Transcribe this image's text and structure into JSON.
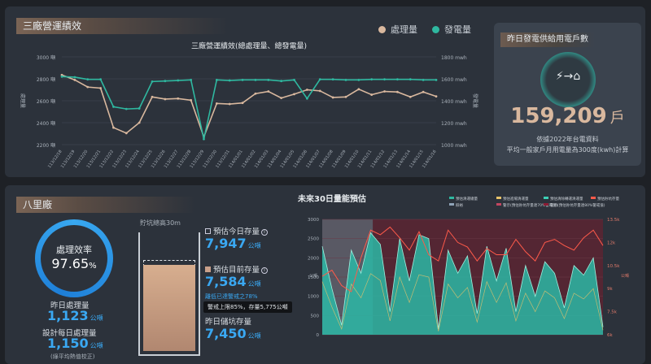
{
  "top_panel": {
    "title": "三廠營運績效",
    "legend": [
      {
        "label": "處理量",
        "color": "#d9b89e"
      },
      {
        "label": "發電量",
        "color": "#2fb8a0"
      }
    ]
  },
  "chart_data": [
    {
      "type": "line",
      "title": "三廠營運績效(總處理量、總發電量)",
      "ylabel": "處理量",
      "y2label": "發電量",
      "ylim": [
        2200,
        3000
      ],
      "y2lim": [
        1000,
        1800
      ],
      "y_ticks": [
        "3000 噸",
        "2800 噸",
        "2600 噸",
        "2400 噸",
        "2200 噸"
      ],
      "y2_ticks": [
        "1800 mwh",
        "1600 mwh",
        "1400 mwh",
        "1200 mwh",
        "1000 mwh"
      ],
      "categories": [
        "113/12/18",
        "113/12/19",
        "113/12/20",
        "113/12/21",
        "113/12/22",
        "113/12/23",
        "113/12/24",
        "113/12/25",
        "113/12/26",
        "113/12/27",
        "113/12/28",
        "113/12/29",
        "113/12/30",
        "113/12/31",
        "114/01/01",
        "114/01/02",
        "114/01/03",
        "114/01/04",
        "114/01/05",
        "114/01/06",
        "114/01/07",
        "114/01/08",
        "114/01/09",
        "114/01/10",
        "114/01/11",
        "114/01/12",
        "114/01/13",
        "114/01/14",
        "114/01/15",
        "114/01/16"
      ],
      "series": [
        {
          "name": "處理量",
          "axis": "left",
          "color": "#d9b89e",
          "values": [
            2835,
            2790,
            2725,
            2715,
            2355,
            2305,
            2400,
            2635,
            2615,
            2620,
            2605,
            2270,
            2575,
            2570,
            2580,
            2665,
            2685,
            2625,
            2660,
            2700,
            2690,
            2630,
            2635,
            2705,
            2655,
            2685,
            2680,
            2635,
            2680,
            2640
          ]
        },
        {
          "name": "發電量",
          "axis": "right",
          "color": "#2fb8a0",
          "values": [
            1620,
            1615,
            1595,
            1595,
            1345,
            1325,
            1330,
            1575,
            1580,
            1585,
            1590,
            1050,
            1590,
            1585,
            1590,
            1590,
            1590,
            1580,
            1590,
            1420,
            1595,
            1595,
            1590,
            1590,
            1595,
            1595,
            1595,
            1595,
            1590,
            1590
          ]
        }
      ]
    },
    {
      "type": "area",
      "title": "未來30日量能預估",
      "ylim": [
        0,
        3000
      ],
      "y_ticks": [
        "3000",
        "2500",
        "2000",
        "1500",
        "1000",
        "500",
        "0"
      ],
      "ylabel": "公噸",
      "y2lim": [
        6000,
        13500
      ],
      "y2_ticks": [
        "13.5k",
        "12k",
        "10.5k",
        "9k",
        "7.5k",
        "6k"
      ],
      "y2label": "公噸",
      "legend": [
        {
          "label": "預估清運總量",
          "color": "#2fb8a0"
        },
        {
          "label": "預估進場清運量",
          "color": "#e8c36a"
        },
        {
          "label": "預估清除轉運清運量",
          "color": "#3ccfb5"
        },
        {
          "label": "預估貯坑存量",
          "color": "#ff5a4a"
        },
        {
          "label": "餘裕",
          "color": "#8fa4b8"
        },
        {
          "label": "警示(預估貯坑存量達70%警戒值)",
          "color": "#c24660"
        },
        {
          "label": "警示(預估貯坑存量達80%警戒值)",
          "color": "#8c1d35"
        }
      ],
      "series": [
        {
          "name": "預估清運總量",
          "color": "#2fb8a0",
          "values": [
            2300,
            1200,
            250,
            2200,
            1600,
            2650,
            2350,
            600,
            2500,
            1400,
            2600,
            2500,
            150,
            2200,
            1600,
            2050,
            550,
            2300,
            1400,
            2250,
            600,
            1800,
            1000,
            1900,
            1600,
            700,
            1800,
            1550,
            2000,
            200
          ]
        },
        {
          "name": "預估貯坑存量",
          "color": "#ff5a4a",
          "values": [
            9800,
            10200,
            9200,
            8800,
            11000,
            12800,
            12500,
            13000,
            12300,
            11500,
            12700,
            11200,
            10800,
            12800,
            12000,
            11700,
            10800,
            11600,
            11200,
            11200,
            12200,
            11400,
            10800,
            12000,
            12200,
            11800,
            11500,
            12300,
            12800,
            11800
          ]
        }
      ]
    }
  ],
  "supply_card": {
    "title": "昨日發電供給用電戶數",
    "icon_arrow": "⚡→⌂",
    "number": "159,209",
    "unit": "戶",
    "note1": "依據2022年台電資料",
    "note2": "平均一般家戶月用電量為300度(kwh)計算"
  },
  "bottom_panel": {
    "title": "八里廠",
    "efficiency_label": "處理效率",
    "efficiency_value": "97.65",
    "efficiency_unit": "%",
    "yesterday_label": "昨日處理量",
    "yesterday_value": "1,123",
    "yesterday_unit": "公噸",
    "design_label": "設計每日處理量",
    "design_value": "1,150",
    "design_unit": "公噸",
    "design_note": "(綠平均熱值校正)",
    "pit_height_label": "貯坑總高30m",
    "forecast_label": "預估今日存量",
    "forecast_value": "7,947",
    "forecast_unit": "公噸",
    "current_label": "預估目前存量",
    "current_value": "7,584",
    "current_unit": "公噸",
    "warning_text": "離低已達警戒之78%",
    "tooltip_text": "警戒上限85%，存量5,775公噸",
    "yesterday_pit_label": "昨日儲坑存量",
    "yesterday_pit_value": "7,450",
    "yesterday_pit_unit": "公噸",
    "pit_fill_fraction": 0.78
  }
}
